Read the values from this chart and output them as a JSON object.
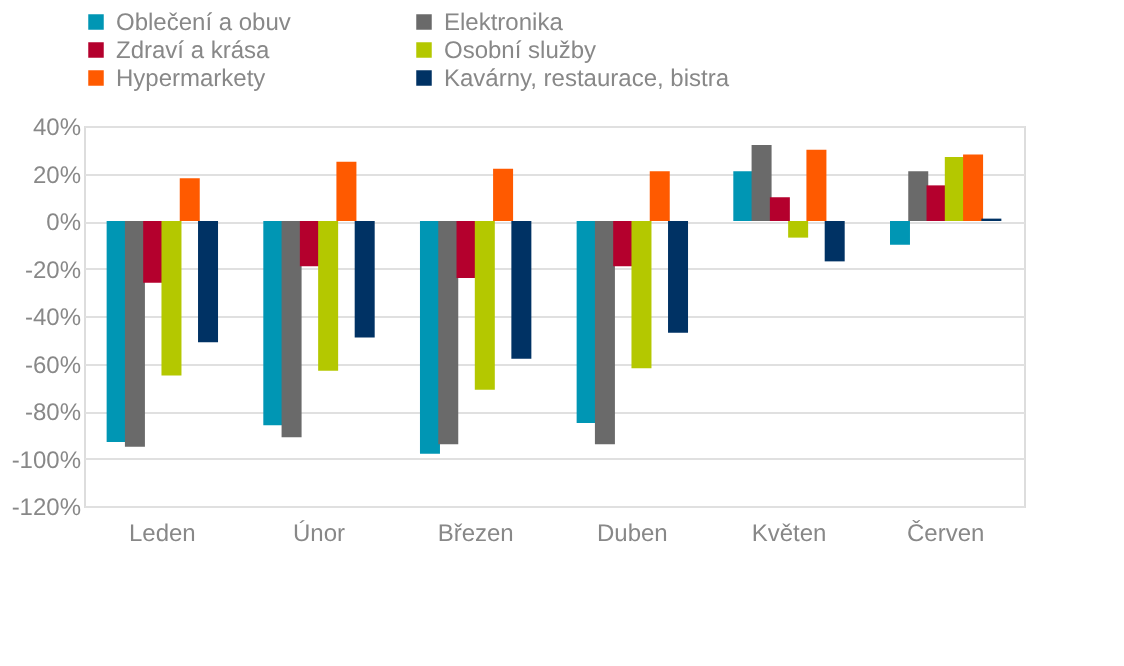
{
  "chart_data": {
    "type": "bar",
    "categories": [
      "Leden",
      "Únor",
      "Březen",
      "Duben",
      "Květen",
      "Červen"
    ],
    "series": [
      {
        "name": "Oblečení a obuv",
        "color": "#0096b4",
        "values": [
          -93,
          -86,
          -98,
          -85,
          21,
          -10
        ]
      },
      {
        "name": "Elektronika",
        "color": "#6a6a6a",
        "values": [
          -95,
          -91,
          -94,
          -94,
          32,
          21
        ]
      },
      {
        "name": "Zdraví a krása",
        "color": "#b4002d",
        "values": [
          -26,
          -19,
          -24,
          -19,
          10,
          15
        ]
      },
      {
        "name": "Osobní služby",
        "color": "#b4c800",
        "values": [
          -65,
          -63,
          -71,
          -62,
          -7,
          27
        ]
      },
      {
        "name": "Hypermarkety",
        "color": "#ff5a00",
        "values": [
          18,
          25,
          22,
          21,
          30,
          28
        ]
      },
      {
        "name": "Kavárny, restaurace, bistra",
        "color": "#003264",
        "values": [
          -51,
          -49,
          -58,
          -47,
          -17,
          1
        ]
      }
    ],
    "ylim": [
      -120,
      40
    ],
    "yticks": [
      {
        "value": -120,
        "label": "-120%"
      },
      {
        "value": -100,
        "label": "-100%"
      },
      {
        "value": -80,
        "label": "-80%"
      },
      {
        "value": -60,
        "label": "-60%"
      },
      {
        "value": -40,
        "label": "-40%"
      },
      {
        "value": -20,
        "label": "-20%"
      },
      {
        "value": 0,
        "label": "0%"
      },
      {
        "value": 20,
        "label": "20%"
      },
      {
        "value": 40,
        "label": "40%"
      }
    ],
    "grid": "y",
    "legend": "top"
  }
}
